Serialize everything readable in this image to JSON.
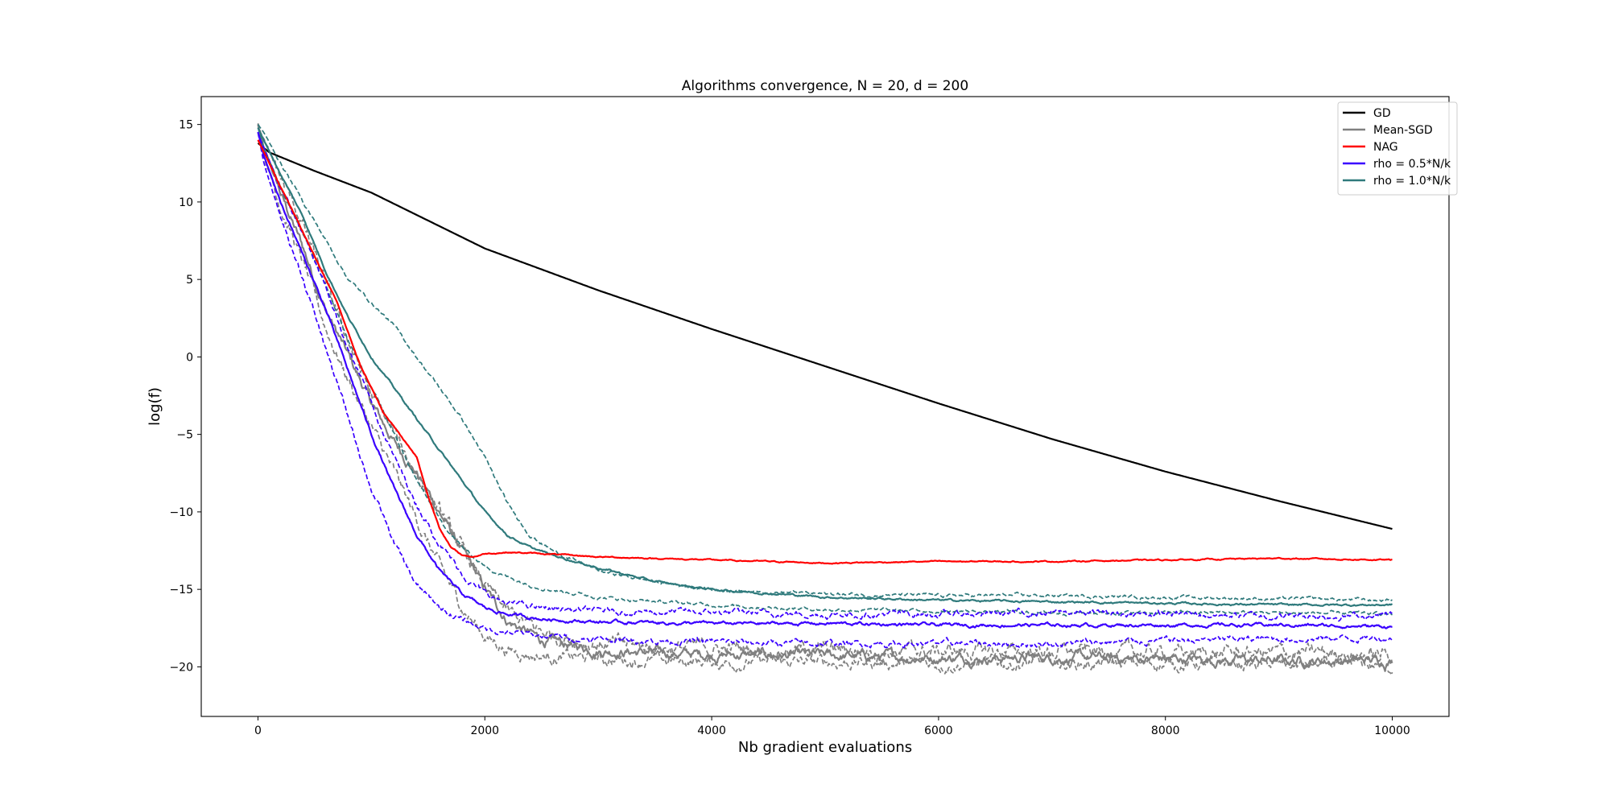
{
  "chart_data": {
    "type": "line",
    "title": "Algorithms convergence, N = 20, d = 200",
    "xlabel": "Nb gradient evaluations",
    "ylabel": "log(f)",
    "xlim": [
      -500,
      10500
    ],
    "ylim": [
      -23.2,
      16.8
    ],
    "xticks": [
      0,
      2000,
      4000,
      6000,
      8000,
      10000
    ],
    "yticks": [
      15,
      10,
      5,
      0,
      -5,
      -10,
      -15,
      -20
    ],
    "ytick_labels": [
      "15",
      "10",
      "5",
      "0",
      "−5",
      "−10",
      "−15",
      "−20"
    ],
    "legend_position": "top-right",
    "grid": false,
    "series": [
      {
        "name": "GD",
        "color": "#000000",
        "style": "solid",
        "legend": true,
        "noise": 0,
        "x": [
          0,
          100,
          500,
          1000,
          2000,
          3000,
          4000,
          5000,
          6000,
          7000,
          8000,
          9000,
          10000
        ],
        "y": [
          13.8,
          13.2,
          12.0,
          10.6,
          7.0,
          4.3,
          1.8,
          -0.6,
          -3.0,
          -5.3,
          -7.4,
          -9.3,
          -11.1
        ]
      },
      {
        "name": "Mean-SGD",
        "color": "#808080",
        "style": "solid",
        "legend": true,
        "noise": 0.25,
        "x": [
          0,
          50,
          200,
          400,
          600,
          800,
          1000,
          1200,
          1400,
          1600,
          1800,
          2000,
          2200,
          2500,
          3000,
          3500,
          4000,
          5000,
          6000,
          7000,
          8000,
          9000,
          10000
        ],
        "y": [
          15.0,
          13.5,
          10.5,
          7.0,
          3.0,
          0.0,
          -3.0,
          -5.5,
          -7.5,
          -10.0,
          -12.5,
          -15.0,
          -17.0,
          -18.3,
          -18.9,
          -19.1,
          -19.2,
          -19.3,
          -19.4,
          -19.4,
          -19.5,
          -19.6,
          -19.6
        ]
      },
      {
        "name": "",
        "color": "#808080",
        "style": "dashed",
        "legend": false,
        "noise": 0.3,
        "x": [
          0,
          50,
          200,
          400,
          600,
          800,
          1000,
          1200,
          1400,
          1600,
          1800,
          2000,
          2200,
          2500,
          3000,
          3500,
          4000,
          5000,
          6000,
          7000,
          8000,
          9000,
          10000
        ],
        "y": [
          15.0,
          13.0,
          9.8,
          6.0,
          1.8,
          -1.5,
          -4.5,
          -7.5,
          -10.5,
          -13.5,
          -16.2,
          -18.0,
          -18.9,
          -19.3,
          -19.5,
          -19.6,
          -19.7,
          -19.7,
          -19.8,
          -19.8,
          -19.8,
          -19.9,
          -19.9
        ]
      },
      {
        "name": "",
        "color": "#808080",
        "style": "dashed",
        "legend": false,
        "noise": 0.35,
        "x": [
          0,
          50,
          200,
          400,
          600,
          800,
          1000,
          1200,
          1400,
          1600,
          1800,
          2000,
          2200,
          2500,
          3000,
          3500,
          4000,
          5000,
          6000,
          7000,
          8000,
          9000,
          10000
        ],
        "y": [
          15.0,
          14.0,
          11.5,
          8.5,
          4.5,
          1.0,
          -2.5,
          -5.0,
          -7.5,
          -10.0,
          -12.5,
          -14.8,
          -16.5,
          -17.8,
          -18.5,
          -18.7,
          -18.8,
          -18.9,
          -19.0,
          -19.0,
          -19.1,
          -19.1,
          -19.2
        ]
      },
      {
        "name": "NAG",
        "color": "#ff0000",
        "style": "solid",
        "legend": true,
        "noise": 0.03,
        "x": [
          0,
          100,
          300,
          500,
          700,
          900,
          1100,
          1300,
          1400,
          1500,
          1600,
          1700,
          1800,
          1900,
          2000,
          2200,
          2500,
          3000,
          3500,
          4000,
          5000,
          6000,
          7000,
          8000,
          9000,
          10000
        ],
        "y": [
          14.0,
          12.5,
          9.5,
          6.5,
          3.5,
          -0.5,
          -3.5,
          -5.5,
          -6.5,
          -9.0,
          -11.0,
          -12.3,
          -12.8,
          -12.9,
          -12.7,
          -12.6,
          -12.7,
          -12.9,
          -13.0,
          -13.1,
          -13.3,
          -13.2,
          -13.2,
          -13.1,
          -13.0,
          -13.1
        ]
      },
      {
        "name": "rho = 0.5*N/k",
        "color": "#3a00ff",
        "style": "solid",
        "legend": true,
        "noise": 0.08,
        "x": [
          0,
          50,
          200,
          400,
          600,
          800,
          1000,
          1200,
          1400,
          1600,
          1800,
          2000,
          2200,
          2500,
          3000,
          4000,
          5000,
          6000,
          7000,
          8000,
          9000,
          10000
        ],
        "y": [
          14.5,
          13.0,
          10.0,
          6.5,
          3.0,
          -1.0,
          -5.0,
          -8.5,
          -11.5,
          -13.8,
          -15.3,
          -16.2,
          -16.6,
          -16.9,
          -17.1,
          -17.2,
          -17.2,
          -17.3,
          -17.3,
          -17.3,
          -17.3,
          -17.4
        ]
      },
      {
        "name": "",
        "color": "#3a00ff",
        "style": "dashed",
        "legend": false,
        "noise": 0.15,
        "x": [
          0,
          50,
          200,
          400,
          600,
          800,
          1000,
          1200,
          1400,
          1600,
          1800,
          2000,
          2200,
          2500,
          3000,
          4000,
          5000,
          6000,
          7000,
          8000,
          9000,
          10000
        ],
        "y": [
          14.5,
          12.5,
          9.0,
          5.0,
          0.5,
          -4.0,
          -8.5,
          -12.0,
          -14.8,
          -16.2,
          -17.0,
          -17.5,
          -17.8,
          -18.0,
          -18.2,
          -18.4,
          -18.5,
          -18.5,
          -18.5,
          -18.3,
          -18.2,
          -18.1
        ]
      },
      {
        "name": "",
        "color": "#3a00ff",
        "style": "dashed",
        "legend": false,
        "noise": 0.15,
        "x": [
          0,
          50,
          200,
          400,
          600,
          800,
          1000,
          1200,
          1400,
          1600,
          1800,
          2000,
          2200,
          2500,
          3000,
          4000,
          5000,
          6000,
          7000,
          8000,
          9000,
          10000
        ],
        "y": [
          14.5,
          13.5,
          11.0,
          8.0,
          4.5,
          0.5,
          -3.0,
          -6.5,
          -9.5,
          -12.0,
          -14.0,
          -15.3,
          -15.9,
          -16.2,
          -16.4,
          -16.5,
          -16.6,
          -16.6,
          -16.5,
          -16.6,
          -16.7,
          -16.7
        ]
      },
      {
        "name": "rho = 1.0*N/k",
        "color": "#2f7a7c",
        "style": "solid",
        "legend": true,
        "noise": 0.05,
        "x": [
          0,
          50,
          200,
          400,
          600,
          800,
          1000,
          1200,
          1400,
          1600,
          1800,
          2000,
          2200,
          2400,
          2600,
          3000,
          3500,
          4000,
          5000,
          6000,
          7000,
          8000,
          9000,
          10000
        ],
        "y": [
          14.8,
          14.0,
          11.8,
          9.0,
          5.5,
          2.5,
          0.0,
          -2.0,
          -4.0,
          -6.0,
          -8.0,
          -10.0,
          -11.5,
          -12.3,
          -12.8,
          -13.6,
          -14.5,
          -15.0,
          -15.5,
          -15.7,
          -15.8,
          -15.9,
          -16.0,
          -16.0
        ]
      },
      {
        "name": "",
        "color": "#2f7a7c",
        "style": "dashed",
        "legend": false,
        "noise": 0.08,
        "x": [
          0,
          50,
          200,
          400,
          600,
          800,
          1000,
          1200,
          1400,
          1600,
          1800,
          2000,
          2200,
          2400,
          2600,
          3000,
          3500,
          4000,
          5000,
          6000,
          7000,
          8000,
          9000,
          10000
        ],
        "y": [
          15.0,
          14.5,
          12.5,
          10.0,
          7.5,
          5.0,
          3.5,
          2.0,
          0.0,
          -2.0,
          -4.0,
          -6.5,
          -9.5,
          -11.5,
          -12.5,
          -13.8,
          -14.5,
          -15.0,
          -15.3,
          -15.4,
          -15.4,
          -15.5,
          -15.6,
          -15.7
        ]
      },
      {
        "name": "",
        "color": "#2f7a7c",
        "style": "dashed",
        "legend": false,
        "noise": 0.08,
        "x": [
          0,
          50,
          200,
          400,
          600,
          800,
          1000,
          1200,
          1400,
          1600,
          1800,
          2000,
          2200,
          2400,
          2600,
          3000,
          3500,
          4000,
          5000,
          6000,
          7000,
          8000,
          9000,
          10000
        ],
        "y": [
          14.8,
          13.5,
          11.0,
          8.0,
          4.5,
          1.0,
          -2.0,
          -5.0,
          -8.0,
          -10.5,
          -12.3,
          -13.5,
          -14.2,
          -14.7,
          -15.0,
          -15.5,
          -15.8,
          -16.0,
          -16.3,
          -16.4,
          -16.5,
          -16.5,
          -16.5,
          -16.6
        ]
      }
    ]
  }
}
